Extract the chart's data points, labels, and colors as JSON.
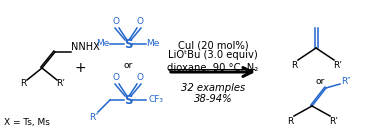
{
  "bg_color": "#ffffff",
  "black": "#000000",
  "blue": "#2266cc",
  "figsize": [
    3.78,
    1.36
  ],
  "dpi": 100,
  "reagent1_NNHX": "NNHX",
  "reagent1_R": "R",
  "reagent1_Rprime": "R’",
  "reagent1_X": "X = Ts, Ms",
  "sulfone1_Me1": "Me",
  "sulfone1_Me2": "Me",
  "sulfone1_S": "S",
  "sulfone1_O1": "O",
  "sulfone1_O2": "O",
  "sulfone1_or": "or",
  "sulfone2_Rpp": "R″",
  "sulfone2_CF3": "CF₃",
  "sulfone2_S": "S",
  "sulfone2_O1": "O",
  "sulfone2_O2": "O",
  "arrow_conditions1": "CuI (20 mol%)",
  "arrow_conditions2": "LiOᵗBu (3.0 equiv)",
  "arrow_conditions3": "dioxane, 90 °C, N₂",
  "arrow_yield1": "32 examples",
  "arrow_yield2": "38-94%",
  "product1_R": "R",
  "product1_Rprime": "R’",
  "product_or": "or",
  "product2_R": "R",
  "product2_Rprime": "R’",
  "product2_Rpp": "R″",
  "plus": "+",
  "font_size_main": 7.5,
  "font_size_small": 6.5,
  "font_size_italic": 7.2,
  "font_size_conditions": 7.2
}
